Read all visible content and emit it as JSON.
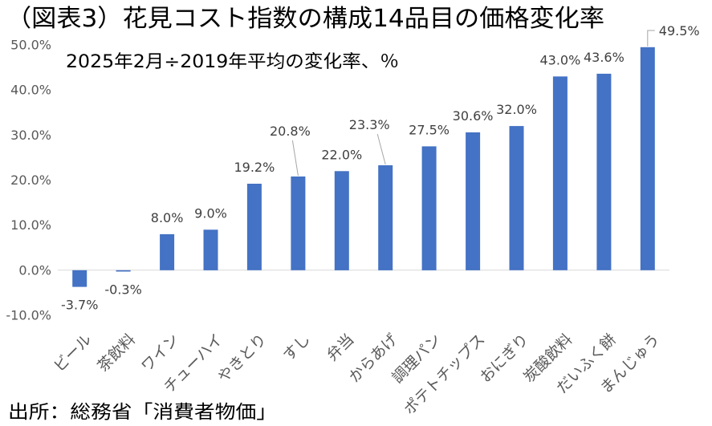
{
  "chart_data": {
    "type": "bar",
    "title": "（図表3）花見コスト指数の構成14品目の価格変化率",
    "subtitle": "2025年2月÷2019年平均の変化率、％",
    "source": "出所：総務省「消費者物価」",
    "categories": [
      "ビール",
      "茶飲料",
      "ワイン",
      "チューハイ",
      "やきとり",
      "すし",
      "弁当",
      "からあげ",
      "調理パン",
      "ポテトチップス",
      "おにぎり",
      "炭酸飲料",
      "だいふく餅",
      "まんじゅう"
    ],
    "values": [
      -3.7,
      -0.3,
      8.0,
      9.0,
      19.2,
      20.8,
      22.0,
      23.3,
      27.5,
      30.6,
      32.0,
      43.0,
      43.6,
      49.5
    ],
    "data_labels": [
      "-3.7%",
      "-0.3%",
      "8.0%",
      "9.0%",
      "19.2%",
      "20.8%",
      "22.0%",
      "23.3%",
      "27.5%",
      "30.6%",
      "32.0%",
      "43.0%",
      "43.6%",
      "49.5%"
    ],
    "ylim": [
      -10,
      50
    ],
    "y_ticks": [
      50,
      40,
      30,
      20,
      10,
      0,
      -10
    ],
    "y_tick_labels": [
      "50.0%",
      "40.0%",
      "30.0%",
      "20.0%",
      "10.0%",
      "0.0%",
      "-10.0%"
    ],
    "grid": false,
    "legend": "none",
    "colors": {
      "bar": "#4472C4",
      "title": "#000000",
      "tick_text": "#595959",
      "label_text": "#404040",
      "axis_line": "#D9D9D9",
      "leader_line": "#A6A6A6"
    }
  }
}
